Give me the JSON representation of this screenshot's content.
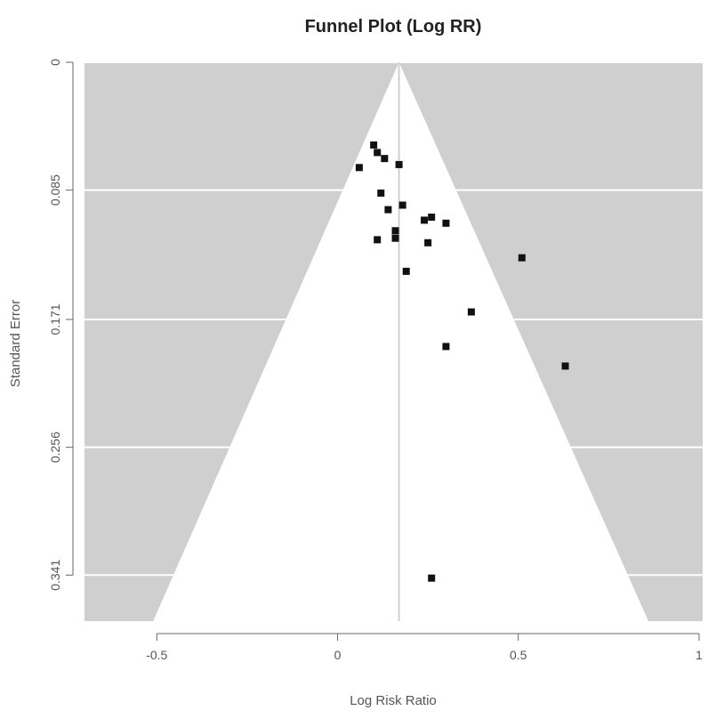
{
  "chart_data": {
    "type": "scatter",
    "title": "Funnel Plot (Log RR)",
    "xlabel": "Log Risk Ratio",
    "ylabel": "Standard Error",
    "xlim": [
      -0.7,
      1.01
    ],
    "ylim": [
      0,
      0.3716
    ],
    "y_reversed": true,
    "x_ticks": [
      -0.5,
      0,
      0.5,
      1
    ],
    "x_tick_labels": [
      "-0.5",
      "0",
      "0.5",
      "1"
    ],
    "y_ticks": [
      0,
      0.085,
      0.171,
      0.256,
      0.341
    ],
    "y_tick_labels": [
      "0",
      "0.085",
      "0.171",
      "0.256",
      "0.341"
    ],
    "pooled_estimate": 0.17,
    "funnel": {
      "apex": [
        0.17,
        0
      ],
      "base_left": -0.51,
      "base_right": 0.86,
      "base_se": 0.3716
    },
    "colors": {
      "panel": "#cfcfcf",
      "funnel": "#ffffff",
      "gridline": "#ffffff",
      "center_line": "#d0d0d0",
      "points": "#111111"
    },
    "points": [
      {
        "x": 0.1,
        "y": 0.055
      },
      {
        "x": 0.11,
        "y": 0.06
      },
      {
        "x": 0.13,
        "y": 0.064
      },
      {
        "x": 0.06,
        "y": 0.07
      },
      {
        "x": 0.17,
        "y": 0.068
      },
      {
        "x": 0.12,
        "y": 0.087
      },
      {
        "x": 0.18,
        "y": 0.095
      },
      {
        "x": 0.14,
        "y": 0.098
      },
      {
        "x": 0.24,
        "y": 0.105
      },
      {
        "x": 0.26,
        "y": 0.103
      },
      {
        "x": 0.3,
        "y": 0.107
      },
      {
        "x": 0.16,
        "y": 0.112
      },
      {
        "x": 0.16,
        "y": 0.117
      },
      {
        "x": 0.11,
        "y": 0.118
      },
      {
        "x": 0.25,
        "y": 0.12
      },
      {
        "x": 0.51,
        "y": 0.13
      },
      {
        "x": 0.19,
        "y": 0.139
      },
      {
        "x": 0.37,
        "y": 0.166
      },
      {
        "x": 0.3,
        "y": 0.189
      },
      {
        "x": 0.63,
        "y": 0.202
      },
      {
        "x": 0.26,
        "y": 0.343
      }
    ]
  }
}
